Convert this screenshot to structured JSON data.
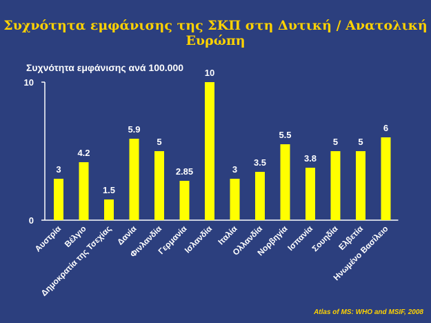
{
  "title": "Συχνότητα εμφάνισης της ΣΚΠ στη Δυτική / Ανατολική Ευρώπη",
  "source": "Atlas of MS: WHO and MSIF, 2008",
  "colors": {
    "background": "#2c3f7e",
    "title": "#ffd200",
    "bar": "#ffff00",
    "text": "#ffffff"
  },
  "chart_data": {
    "type": "bar",
    "ylabel": "Συχνότητα εμφάνισης ανά 100.000",
    "xlabel": "",
    "ylim": [
      0,
      10
    ],
    "yticks": [
      "0",
      "10"
    ],
    "grid": false,
    "categories": [
      "Αυστρία",
      "Βέλγιο",
      "Δημοκρατία της Τσεχίας",
      "Δανία",
      "Φινλανδία",
      "Γερμανία",
      "Ισλανδία",
      "Ιταλία",
      "Ολλανδία",
      "Νορβηγία",
      "Ισπανία",
      "Σουηδία",
      "Ελβετία",
      "Ηνωμένο Βασίλειο"
    ],
    "values": [
      3,
      4.2,
      1.5,
      5.9,
      5,
      2.85,
      10,
      3,
      3.5,
      5.5,
      3.8,
      5,
      5,
      6
    ],
    "value_labels": [
      "3",
      "4.2",
      "1.5",
      "5.9",
      "5",
      "2.85",
      "10",
      "3",
      "3.5",
      "5.5",
      "3.8",
      "5",
      "5",
      "6"
    ]
  }
}
